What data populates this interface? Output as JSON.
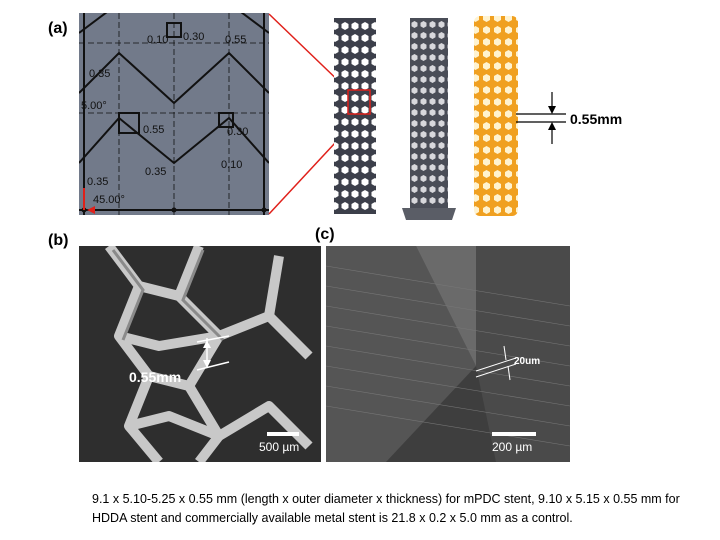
{
  "panels": {
    "a": {
      "label": "(a)",
      "cad_dims": [
        "0.10",
        "0.30",
        "0.55",
        "0.35",
        "5.00°",
        "0.55",
        "0.30",
        "0.10",
        "0.35",
        "0.35",
        "45.00°"
      ],
      "thickness_label": "0.55mm"
    },
    "b": {
      "label": "(b)",
      "thickness_label": "0.55mm",
      "scale_label": "500 µm"
    },
    "c": {
      "label": "(c)",
      "layer_label": "20um",
      "scale_label": "200 µm"
    }
  },
  "caption": "9.1 x 5.10-5.25 x 0.55 mm (length x outer diameter x thickness) for mPDC stent, 9.10 x 5.15 x 0.55 mm for HDDA stent and commercially available metal stent  is 21.8 x 0.2 x 5.0 mm as a control.",
  "colors": {
    "zoom_line": "#e0201a",
    "stent_gray": "#3c3f4a",
    "stent_orange": "#f0a020"
  }
}
